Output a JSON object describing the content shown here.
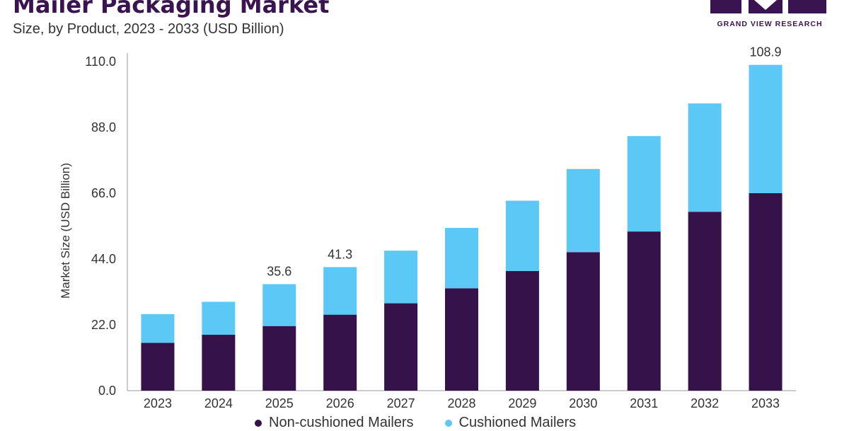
{
  "header": {
    "title": "Mailer Packaging Market",
    "subtitle": "Size, by Product, 2023 - 2033 (USD Billion)"
  },
  "logo": {
    "text": "GRAND VIEW RESEARCH",
    "color": "#3a1450"
  },
  "legend": {
    "items": [
      {
        "label": "Non-cushioned Mailers",
        "color": "#36124a"
      },
      {
        "label": "Cushioned Mailers",
        "color": "#5bc8f5"
      }
    ]
  },
  "chart_data": {
    "type": "bar",
    "stacked": true,
    "title": "Mailer Packaging Market",
    "subtitle": "Size, by Product, 2023 - 2033 (USD Billion)",
    "xlabel": "",
    "ylabel": "Market Size (USD Billion)",
    "ylim": [
      0,
      110
    ],
    "yticks": [
      "0.0",
      "22.0",
      "44.0",
      "66.0",
      "88.0",
      "110.0"
    ],
    "categories": [
      "2023",
      "2024",
      "2025",
      "2026",
      "2027",
      "2028",
      "2029",
      "2030",
      "2031",
      "2032",
      "2033"
    ],
    "series": [
      {
        "name": "Non-cushioned Mailers",
        "color": "#36124a",
        "values": [
          16.0,
          18.7,
          21.6,
          25.4,
          29.2,
          34.2,
          40.0,
          46.3,
          53.2,
          59.8,
          66.0
        ]
      },
      {
        "name": "Cushioned Mailers",
        "color": "#5bc8f5",
        "values": [
          9.6,
          11.0,
          14.0,
          15.9,
          17.6,
          20.2,
          23.5,
          27.8,
          31.9,
          36.2,
          42.9
        ]
      }
    ],
    "data_labels": {
      "2025": "35.6",
      "2026": "41.3",
      "2033": "108.9"
    },
    "grid": false,
    "legend": "bottom"
  }
}
